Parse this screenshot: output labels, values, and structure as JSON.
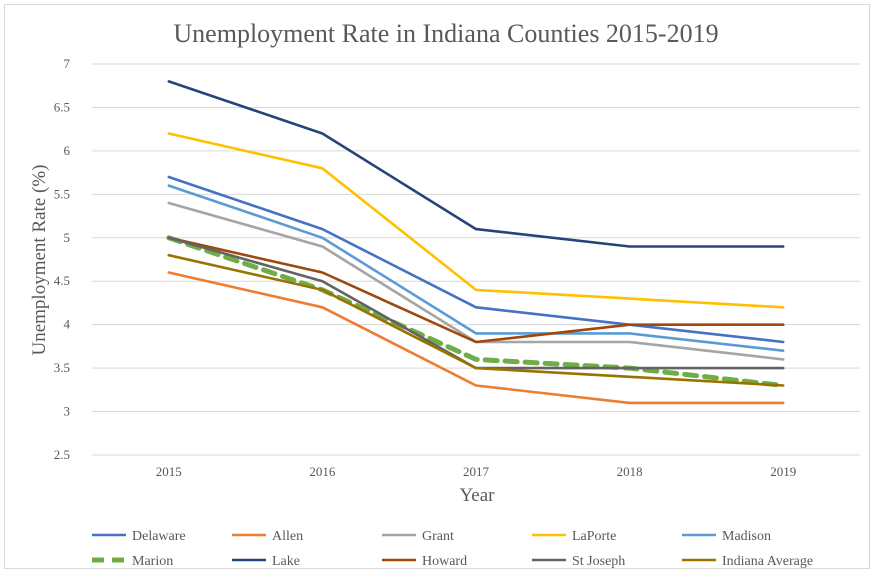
{
  "chart_data": {
    "type": "line",
    "title": "Unemployment Rate in Indiana Counties 2015-2019",
    "xlabel": "Year",
    "ylabel": "Unemployment Rate (%)",
    "x": [
      "2015",
      "2016",
      "2017",
      "2018",
      "2019"
    ],
    "ylim": [
      2.5,
      7
    ],
    "yticks": [
      2.5,
      3,
      3.5,
      4,
      4.5,
      5,
      5.5,
      6,
      6.5,
      7
    ],
    "ytick_labels": [
      "2.5",
      "3",
      "3.5",
      "4",
      "4.5",
      "5",
      "5.5",
      "6",
      "6.5",
      "7"
    ],
    "grid": "horizontal",
    "legend": "bottom",
    "series": [
      {
        "name": "Delaware",
        "values": [
          5.7,
          5.1,
          4.2,
          4.0,
          3.8
        ],
        "color": "#4472c4",
        "dashed": false
      },
      {
        "name": "Allen",
        "values": [
          4.6,
          4.2,
          3.3,
          3.1,
          3.1
        ],
        "color": "#ed7d31",
        "dashed": false
      },
      {
        "name": "Grant",
        "values": [
          5.4,
          4.9,
          3.8,
          3.8,
          3.6
        ],
        "color": "#a5a5a5",
        "dashed": false
      },
      {
        "name": "LaPorte",
        "values": [
          6.2,
          5.8,
          4.4,
          4.3,
          4.2
        ],
        "color": "#ffc000",
        "dashed": false
      },
      {
        "name": "Madison",
        "values": [
          5.6,
          5.0,
          3.9,
          3.9,
          3.7
        ],
        "color": "#5b9bd5",
        "dashed": false
      },
      {
        "name": "Marion",
        "values": [
          5.0,
          4.4,
          3.6,
          3.5,
          3.3
        ],
        "color": "#70ad47",
        "dashed": true
      },
      {
        "name": "Lake",
        "values": [
          6.8,
          6.2,
          5.1,
          4.9,
          4.9
        ],
        "color": "#264478",
        "dashed": false
      },
      {
        "name": "Howard",
        "values": [
          5.0,
          4.6,
          3.8,
          4.0,
          4.0
        ],
        "color": "#9e480e",
        "dashed": false
      },
      {
        "name": "St Joseph",
        "values": [
          5.0,
          4.5,
          3.5,
          3.5,
          3.5
        ],
        "color": "#636363",
        "dashed": false
      },
      {
        "name": "Indiana Average",
        "values": [
          4.8,
          4.4,
          3.5,
          3.4,
          3.3
        ],
        "color": "#997300",
        "dashed": false
      }
    ]
  }
}
